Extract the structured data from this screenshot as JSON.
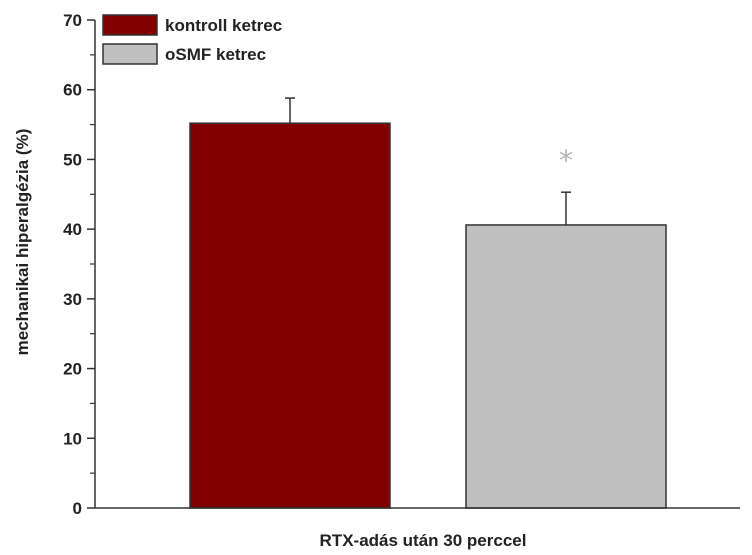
{
  "chart_data": {
    "type": "bar",
    "title": "",
    "xlabel": "RTX-adás után 30 perccel",
    "ylabel": "mechanikai hiperalgézia (%)",
    "ylim": [
      0,
      70
    ],
    "yticks": [
      "0",
      "10",
      "20",
      "30",
      "40",
      "50",
      "60",
      "70"
    ],
    "grid": false,
    "legend_position": "top-left",
    "series": [
      {
        "name": "kontroll ketrec",
        "value": 55.2,
        "error": 3.6,
        "color": "#800000",
        "annotation": ""
      },
      {
        "name": "oSMF ketrec",
        "value": 40.6,
        "error": 4.7,
        "color": "#c0c0c0",
        "annotation": "*"
      }
    ],
    "annotation_color": "#b3b3b3"
  }
}
